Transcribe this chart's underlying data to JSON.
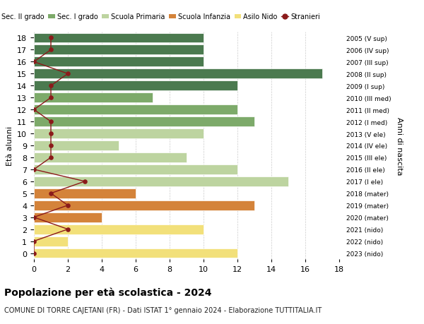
{
  "ages": [
    18,
    17,
    16,
    15,
    14,
    13,
    12,
    11,
    10,
    9,
    8,
    7,
    6,
    5,
    4,
    3,
    2,
    1,
    0
  ],
  "right_labels": [
    "2005 (V sup)",
    "2006 (IV sup)",
    "2007 (III sup)",
    "2008 (II sup)",
    "2009 (I sup)",
    "2010 (III med)",
    "2011 (II med)",
    "2012 (I med)",
    "2013 (V ele)",
    "2014 (IV ele)",
    "2015 (III ele)",
    "2016 (II ele)",
    "2017 (I ele)",
    "2018 (mater)",
    "2019 (mater)",
    "2020 (mater)",
    "2021 (nido)",
    "2022 (nido)",
    "2023 (nido)"
  ],
  "bar_values": [
    10,
    10,
    10,
    17,
    12,
    7,
    12,
    13,
    10,
    5,
    9,
    12,
    15,
    6,
    13,
    4,
    10,
    2,
    12
  ],
  "bar_colors": [
    "#4b7a4f",
    "#4b7a4f",
    "#4b7a4f",
    "#4b7a4f",
    "#4b7a4f",
    "#7daa6a",
    "#7daa6a",
    "#7daa6a",
    "#bdd4a0",
    "#bdd4a0",
    "#bdd4a0",
    "#bdd4a0",
    "#bdd4a0",
    "#d4833a",
    "#d4833a",
    "#d4833a",
    "#f2e07a",
    "#f2e07a",
    "#f2e07a"
  ],
  "stranieri_x": [
    1,
    1,
    0,
    2,
    1,
    1,
    0,
    1,
    1,
    1,
    1,
    0,
    3,
    1,
    2,
    0,
    2,
    0,
    0
  ],
  "color_stranieri": "#8b1a1a",
  "title": "Popolazione per età scolastica - 2024",
  "subtitle": "COMUNE DI TORRE CAJETANI (FR) - Dati ISTAT 1° gennaio 2024 - Elaborazione TUTTITALIA.IT",
  "ylabel": "Età alunni",
  "ylabel_right": "Anni di nascita",
  "xlim": [
    0,
    18
  ],
  "ylim": [
    -0.5,
    18.5
  ],
  "xticks": [
    0,
    2,
    4,
    6,
    8,
    10,
    12,
    14,
    16,
    18
  ],
  "legend_labels": [
    "Sec. II grado",
    "Sec. I grado",
    "Scuola Primaria",
    "Scuola Infanzia",
    "Asilo Nido",
    "Stranieri"
  ],
  "legend_colors": [
    "#4b7a4f",
    "#7daa6a",
    "#bdd4a0",
    "#d4833a",
    "#f2e07a",
    "#8b1a1a"
  ],
  "bg_color": "#ffffff",
  "grid_color": "#cccccc"
}
